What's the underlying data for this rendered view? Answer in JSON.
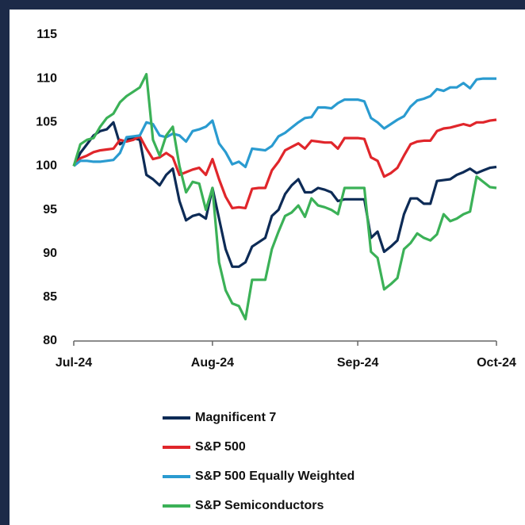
{
  "chart_data": {
    "type": "line",
    "categories": [
      "Jul-24",
      null,
      null,
      null,
      null,
      null,
      null,
      null,
      null,
      null,
      null,
      null,
      null,
      null,
      null,
      null,
      null,
      null,
      null,
      null,
      null,
      "Aug-24",
      null,
      null,
      null,
      null,
      null,
      null,
      null,
      null,
      null,
      null,
      null,
      null,
      null,
      null,
      null,
      null,
      null,
      null,
      null,
      null,
      null,
      "Sep-24",
      null,
      null,
      null,
      null,
      null,
      null,
      null,
      null,
      null,
      null,
      null,
      null,
      null,
      null,
      null,
      null,
      null,
      null,
      null,
      null,
      "Oct-24"
    ],
    "series": [
      {
        "name": "Magnificent 7",
        "color": "#0d2b56",
        "values": [
          100,
          101.5,
          102.5,
          103.5,
          104,
          104.2,
          105,
          102.5,
          103,
          103.2,
          103,
          99,
          98.5,
          97.8,
          99,
          99.7,
          96,
          93.8,
          94.3,
          94.5,
          94,
          97.5,
          94,
          90.5,
          88.5,
          88.5,
          89,
          90.8,
          91.3,
          91.8,
          94.3,
          95,
          96.8,
          97.8,
          98.5,
          97,
          97,
          97.5,
          97.3,
          97,
          96,
          96.2,
          96.2,
          96.2,
          96.2,
          91.8,
          92.5,
          90.2,
          90.8,
          91.5,
          94.5,
          96.3,
          96.3,
          95.7,
          95.7,
          98.3,
          98.4,
          98.5,
          99,
          99.3,
          99.7,
          99.2,
          99.5,
          99.8,
          99.9
        ]
      },
      {
        "name": "S&P 500",
        "color": "#e0262b",
        "values": [
          100,
          100.9,
          101.2,
          101.6,
          101.8,
          101.9,
          102,
          103,
          102.8,
          103,
          103.4,
          102,
          100.8,
          101,
          101.5,
          101,
          99,
          99.3,
          99.6,
          99.8,
          99,
          100.8,
          98.5,
          96.5,
          95.2,
          95.3,
          95.2,
          97.4,
          97.5,
          97.5,
          99.5,
          100.5,
          101.8,
          102.2,
          102.6,
          102,
          102.9,
          102.8,
          102.7,
          102.7,
          102,
          103.2,
          103.2,
          103.2,
          103.1,
          101,
          100.6,
          98.8,
          99.2,
          99.8,
          101.2,
          102.5,
          102.8,
          102.9,
          102.9,
          104,
          104.3,
          104.4,
          104.6,
          104.8,
          104.6,
          105,
          105,
          105.2,
          105.3
        ]
      },
      {
        "name": "S&P 500 Equally Weighted",
        "color": "#2a9bd0",
        "values": [
          100,
          100.6,
          100.6,
          100.5,
          100.5,
          100.6,
          100.7,
          101.5,
          103.3,
          103.4,
          103.5,
          105,
          104.8,
          103.5,
          103.3,
          103.7,
          103.5,
          102.8,
          104,
          104.2,
          104.5,
          105.2,
          102.6,
          101.6,
          100.2,
          100.5,
          99.9,
          102,
          101.9,
          101.8,
          102.3,
          103.4,
          103.8,
          104.4,
          105,
          105.5,
          105.6,
          106.7,
          106.7,
          106.6,
          107.2,
          107.6,
          107.6,
          107.6,
          107.4,
          105.5,
          105,
          104.3,
          104.8,
          105.3,
          105.7,
          106.8,
          107.5,
          107.7,
          108,
          108.8,
          108.6,
          109,
          109,
          109.5,
          108.9,
          109.9,
          110,
          110,
          110
        ]
      },
      {
        "name": "S&P Semiconductors",
        "color": "#3bb157",
        "values": [
          100,
          102.5,
          103,
          103.2,
          104.5,
          105.5,
          106,
          107.3,
          108,
          108.5,
          109,
          110.5,
          103,
          101.2,
          103.5,
          104.5,
          100,
          97,
          98.2,
          98,
          95,
          97.5,
          89,
          85.8,
          84.3,
          84,
          82.5,
          87,
          87,
          87,
          90.5,
          92.5,
          94.3,
          94.7,
          95.5,
          94.2,
          96.3,
          95.5,
          95.3,
          95,
          94.5,
          97.5,
          97.5,
          97.5,
          97.5,
          90.2,
          89.5,
          85.9,
          86.5,
          87.2,
          90.5,
          91.2,
          92.3,
          91.8,
          91.5,
          92.2,
          94.5,
          93.7,
          94,
          94.5,
          94.8,
          98.8,
          98.2,
          97.6,
          97.5
        ]
      }
    ],
    "ylim": [
      80,
      115
    ],
    "yticks": [
      80,
      85,
      90,
      95,
      100,
      105,
      110,
      115
    ],
    "grid": false
  }
}
